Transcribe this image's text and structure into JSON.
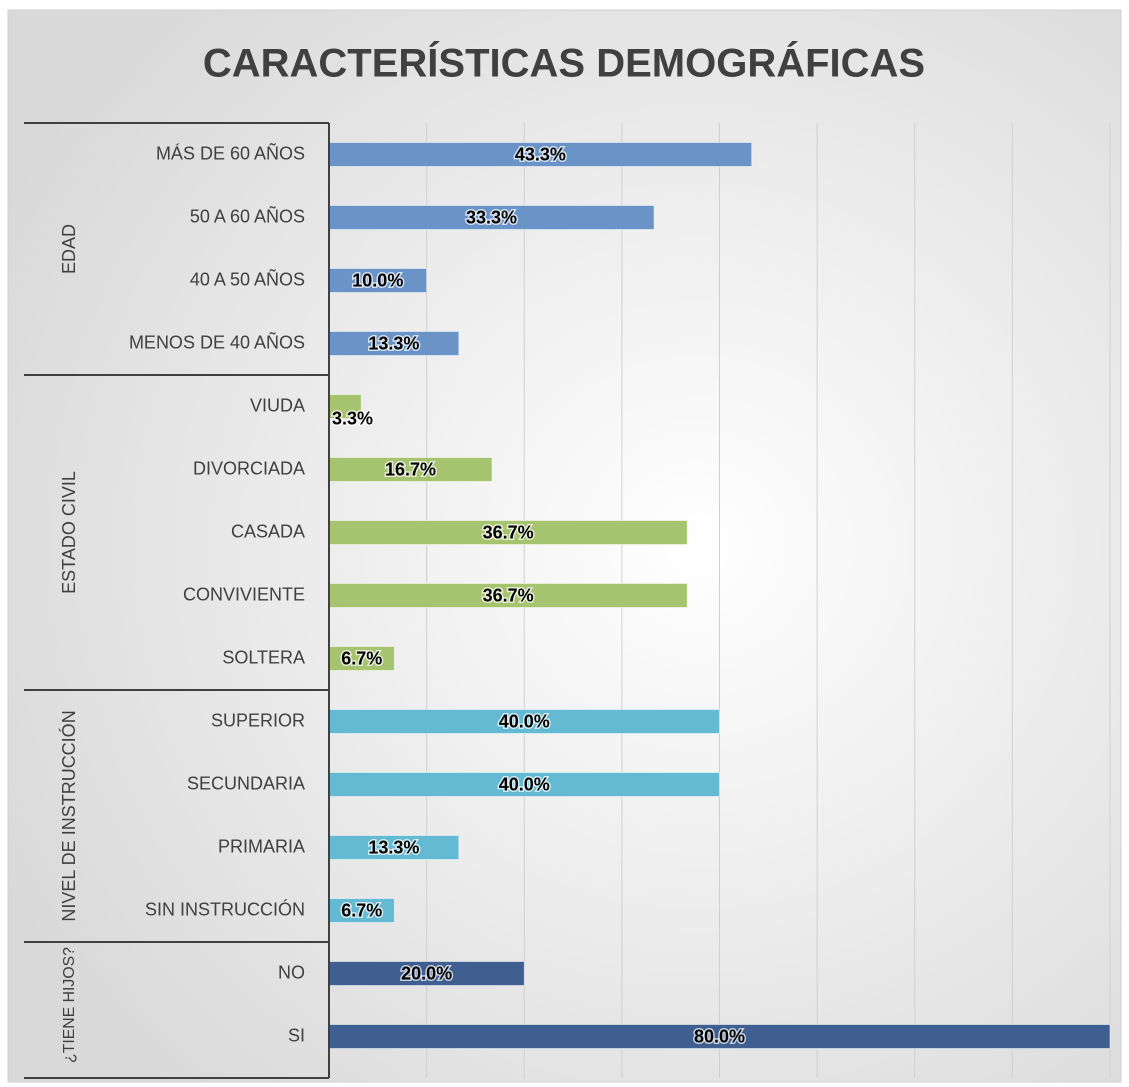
{
  "chart_data": {
    "type": "bar",
    "orientation": "horizontal",
    "title": "CARACTERÍSTICAS DEMOGRÁFICAS",
    "xlim": [
      0,
      80
    ],
    "xticks": [
      0,
      10,
      20,
      30,
      40,
      50,
      60,
      70,
      80
    ],
    "grid": true,
    "groups": [
      {
        "name": "EDAD",
        "color": "#6a93c8",
        "categories": [
          "MÁS DE 60 AÑOS",
          "50 A 60 AÑOS",
          "40 A 50 AÑOS",
          "MENOS DE 40 AÑOS"
        ],
        "values": [
          43.3,
          33.3,
          10.0,
          13.3
        ],
        "value_labels": [
          "43.3%",
          "33.3%",
          "10.0%",
          "13.3%"
        ]
      },
      {
        "name": "ESTADO CIVIL",
        "color": "#a6c36f",
        "categories": [
          "VIUDA",
          "DIVORCIADA",
          "CASADA",
          "CONVIVIENTE",
          "SOLTERA"
        ],
        "values": [
          3.3,
          16.7,
          36.7,
          36.7,
          6.7
        ],
        "value_labels": [
          "3.3%",
          "16.7%",
          "36.7%",
          "36.7%",
          "6.7%"
        ]
      },
      {
        "name": "NIVEL DE INSTRUCCIÓN",
        "color": "#64b9d3",
        "categories": [
          "SUPERIOR",
          "SECUNDARIA",
          "PRIMARIA",
          "SIN INSTRUCCIÓN"
        ],
        "values": [
          40.0,
          40.0,
          13.3,
          6.7
        ],
        "value_labels": [
          "40.0%",
          "40.0%",
          "13.3%",
          "6.7%"
        ]
      },
      {
        "name": "¿TIENE HIJOS?",
        "color": "#3e5f8f",
        "categories": [
          "NO",
          "SI"
        ],
        "values": [
          20.0,
          80.0
        ],
        "value_labels": [
          "20.0%",
          "80.0%"
        ]
      }
    ]
  }
}
